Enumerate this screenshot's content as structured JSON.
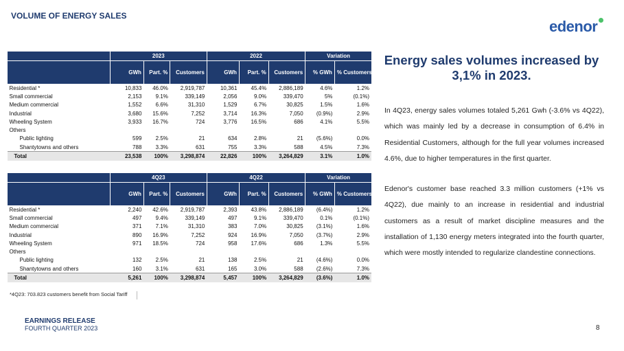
{
  "header": {
    "title": "VOLUME OF ENERGY SALES",
    "logo": "edenor"
  },
  "tables": [
    {
      "groups": [
        "2023",
        "2022",
        "Variation"
      ],
      "columns": [
        "GWh",
        "Part. %",
        "Customers",
        "GWh",
        "Part. %",
        "Customers",
        "% GWh",
        "% Customers"
      ],
      "rows": [
        {
          "label": "Residential *",
          "cells": [
            "10,833",
            "46.0%",
            "2,919,787",
            "10,361",
            "45.4%",
            "2,886,189",
            "4.6%",
            "1.2%"
          ]
        },
        {
          "label": "Small commercial",
          "cells": [
            "2,153",
            "9.1%",
            "339,149",
            "2,056",
            "9.0%",
            "339,470",
            "5%",
            "(0.1%)"
          ]
        },
        {
          "label": "Medium commercial",
          "cells": [
            "1,552",
            "6.6%",
            "31,310",
            "1,529",
            "6.7%",
            "30,825",
            "1.5%",
            "1.6%"
          ]
        },
        {
          "label": "Industrial",
          "cells": [
            "3,680",
            "15.6%",
            "7,252",
            "3,714",
            "16.3%",
            "7,050",
            "(0.9%)",
            "2.9%"
          ]
        },
        {
          "label": "Wheeling System",
          "cells": [
            "3,933",
            "16.7%",
            "724",
            "3,776",
            "16.5%",
            "686",
            "4.1%",
            "5.5%"
          ]
        },
        {
          "label": "Others",
          "rows": [
            {
              "label": "Public lighting",
              "cells": [
                "599",
                "2.5%",
                "21",
                "634",
                "2.8%",
                "21",
                "(5.6%)",
                "0.0%"
              ]
            },
            {
              "label": "Shantytowns and others",
              "cells": [
                "788",
                "3.3%",
                "631",
                "755",
                "3.3%",
                "588",
                "4.5%",
                "7.3%"
              ]
            }
          ]
        }
      ],
      "total": {
        "label": "Total",
        "cells": [
          "23,538",
          "100%",
          "3,298,874",
          "22,826",
          "100%",
          "3,264,829",
          "3.1%",
          "1.0%"
        ]
      }
    },
    {
      "groups": [
        "4Q23",
        "4Q22",
        "Variation"
      ],
      "columns": [
        "GWh",
        "Part. %",
        "Customers",
        "GWh",
        "Part. %",
        "Customers",
        "% GWh",
        "% Customers"
      ],
      "rows": [
        {
          "label": "Residential *",
          "cells": [
            "2,240",
            "42.6%",
            "2,919,787",
            "2,393",
            "43.8%",
            "2,886,189",
            "(6.4%)",
            "1.2%"
          ]
        },
        {
          "label": "Small commercial",
          "cells": [
            "497",
            "9.4%",
            "339,149",
            "497",
            "9.1%",
            "339,470",
            "0.1%",
            "(0.1%)"
          ]
        },
        {
          "label": "Medium commercial",
          "cells": [
            "371",
            "7.1%",
            "31,310",
            "383",
            "7.0%",
            "30,825",
            "(3.1%)",
            "1.6%"
          ]
        },
        {
          "label": "Industrial",
          "cells": [
            "890",
            "16.9%",
            "7,252",
            "924",
            "16.9%",
            "7,050",
            "(3.7%)",
            "2.9%"
          ]
        },
        {
          "label": "Wheeling System",
          "cells": [
            "971",
            "18.5%",
            "724",
            "958",
            "17.6%",
            "686",
            "1.3%",
            "5.5%"
          ]
        },
        {
          "label": "Others",
          "rows": [
            {
              "label": "Public lighting",
              "cells": [
                "132",
                "2.5%",
                "21",
                "138",
                "2.5%",
                "21",
                "(4.6%)",
                "0.0%"
              ]
            },
            {
              "label": "Shantytowns and others",
              "cells": [
                "160",
                "3.1%",
                "631",
                "165",
                "3.0%",
                "588",
                "(2.6%)",
                "7.3%"
              ]
            }
          ]
        }
      ],
      "total": {
        "label": "Total",
        "cells": [
          "5,261",
          "100%",
          "3,298,874",
          "5,457",
          "100%",
          "3,264,829",
          "(3.6%)",
          "1.0%"
        ]
      }
    }
  ],
  "footnote": "*4Q23: 703.823 customers benefit from Social Tariff",
  "side": {
    "heading": "Energy sales volumes increased by 3,1% in 2023.",
    "paragraphs": [
      "In 4Q23, energy sales volumes totaled 5,261 Gwh (-3.6% vs 4Q22), which was mainly led by a decrease in consumption of 6.4% in Residential Customers, although for the full year volumes increased 4.6%, due to higher temperatures in the first quarter.",
      "Edenor's customer base reached 3.3 million customers (+1% vs 4Q22), due mainly to an increase in residential and industrial customers as a result of market discipline measures and the installation of 1,130 energy meters integrated into the fourth quarter, which were mostly intended to regularize clandestine connections."
    ]
  },
  "footer": {
    "line1": "EARNINGS RELEASE",
    "line2": "FOURTH QUARTER 2023",
    "page": "8"
  }
}
